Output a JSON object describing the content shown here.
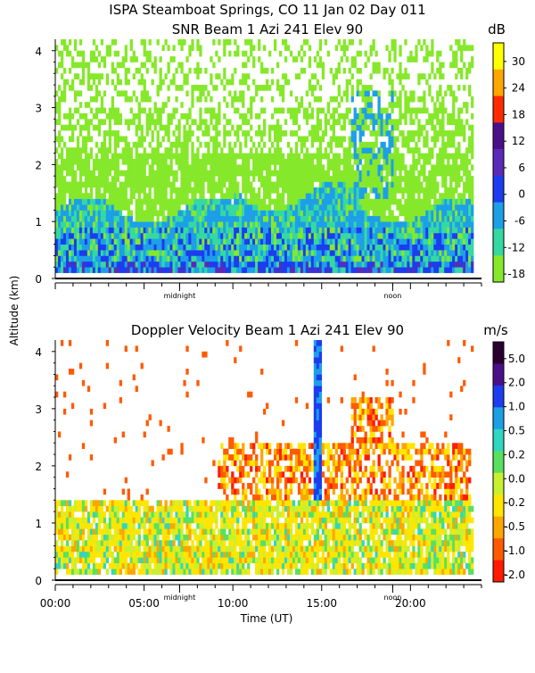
{
  "chart_data": [
    {
      "type": "heatmap",
      "title": "ISPA Steamboat Springs, CO   11 Jan 02 Day 011",
      "subtitle": "SNR Beam 1 Azi 241 Elev 90",
      "ylabel": "Altitude (km)",
      "ylim": [
        0,
        4.2
      ],
      "yticks": [
        "0",
        "1",
        "2",
        "3",
        "4"
      ],
      "xlim": [
        0,
        24
      ],
      "x_markers": [
        "midnight",
        "noon"
      ],
      "colorbar_unit": "dB",
      "colorbar_labels": [
        "30",
        "24",
        "18",
        "12",
        "6",
        "0",
        "-6",
        "-12",
        "-18"
      ],
      "colorbar_colors": [
        "#ffff00",
        "#ffa500",
        "#ff2a00",
        "#4b0f8a",
        "#5a2ab8",
        "#1c3cf0",
        "#1d9fe8",
        "#35d9a0",
        "#86e82a"
      ],
      "layers": [
        {
          "alt_range": [
            0,
            0.3
          ],
          "dominant_db": "-6 to 6"
        },
        {
          "alt_range": [
            0.3,
            1.3
          ],
          "dominant_db": "-12 to -6"
        },
        {
          "alt_range": [
            1.3,
            4.2
          ],
          "dominant_db": "-18"
        }
      ]
    },
    {
      "type": "heatmap",
      "title": "Doppler Velocity Beam 1 Azi 241 Elev 90",
      "xlabel": "Time (UT)",
      "ylim": [
        0,
        4.2
      ],
      "yticks": [
        "0",
        "1",
        "2",
        "3",
        "4"
      ],
      "xlim": [
        0,
        24
      ],
      "xticks": [
        "00:00",
        "05:00",
        "10:00",
        "15:00",
        "20:00"
      ],
      "x_markers": [
        "midnight",
        "noon"
      ],
      "colorbar_unit": "m/s",
      "colorbar_labels": [
        "5.0",
        "2.0",
        "1.0",
        "0.5",
        "0.2",
        "0.0",
        "-0.2",
        "-0.5",
        "-1.0",
        "-2.0"
      ],
      "colorbar_colors": [
        "#2a0030",
        "#4b0f8a",
        "#1c3cf0",
        "#1d9fe8",
        "#2fd6c0",
        "#58e060",
        "#c8f030",
        "#ffe600",
        "#ffa500",
        "#ff5a00",
        "#ff1a00"
      ],
      "layers": [
        {
          "alt_range": [
            0.1,
            1.4
          ],
          "dominant_ms": "-0.2 to 0.2"
        },
        {
          "alt_range": [
            1.4,
            2.8
          ],
          "dominant_ms": "-1.0 to -0.5"
        }
      ]
    }
  ]
}
